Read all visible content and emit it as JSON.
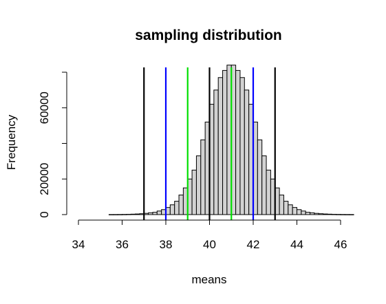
{
  "chart_data": {
    "type": "bar",
    "title": "sampling distribution",
    "xlabel": "means",
    "ylabel": "Frequency",
    "xlim": [
      34,
      46
    ],
    "ylim": [
      0,
      80000
    ],
    "x_ticks": [
      34,
      36,
      38,
      40,
      42,
      44,
      46
    ],
    "y_ticks": [
      0,
      20000,
      40000,
      60000
    ],
    "y_tick_labels": [
      "0",
      "20000",
      "",
      "60000"
    ],
    "bins": {
      "start": 35.4,
      "width": 0.2,
      "values": [
        30,
        40,
        60,
        100,
        150,
        250,
        350,
        500,
        700,
        1000,
        1300,
        2000,
        2800,
        4000,
        5500,
        7500,
        11000,
        15000,
        20000,
        25000,
        33000,
        42000,
        52000,
        62000,
        70000,
        77000,
        81000,
        84000,
        84000,
        81000,
        77000,
        70000,
        62000,
        52000,
        42000,
        33000,
        25000,
        20000,
        15000,
        11000,
        7500,
        5500,
        4000,
        2800,
        2000,
        1300,
        1000,
        700,
        500,
        350,
        250,
        150,
        100,
        60,
        40,
        30
      ]
    },
    "vlines": [
      {
        "x": 37,
        "color": "#000000"
      },
      {
        "x": 43,
        "color": "#000000"
      },
      {
        "x": 38,
        "color": "#0000ff"
      },
      {
        "x": 42,
        "color": "#0000ff"
      },
      {
        "x": 39,
        "color": "#00e000"
      },
      {
        "x": 41,
        "color": "#00e000"
      },
      {
        "x": 40,
        "color": "#000000"
      }
    ],
    "bar_fill": "#d3d3d3",
    "bar_stroke": "#000000"
  }
}
